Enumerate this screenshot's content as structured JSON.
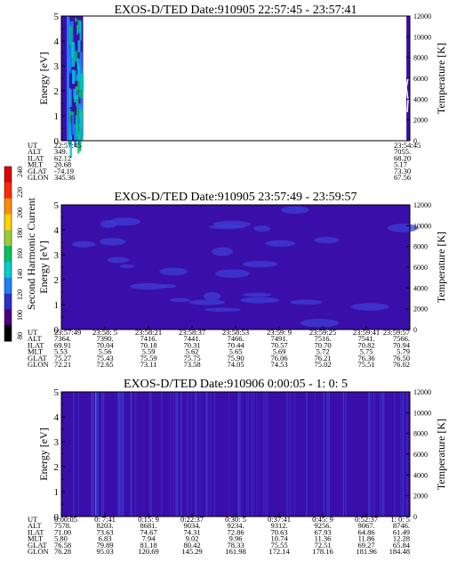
{
  "colors": {
    "background": "#3a0ea8",
    "noise": "#3d3dd6",
    "empty": "#ffffff",
    "frame": "#000000"
  },
  "colorbar": {
    "label": "Second Harmonic Current",
    "ticks": [
      "80",
      "100",
      "120",
      "140",
      "160",
      "180",
      "200",
      "220",
      "240"
    ],
    "colors": [
      "#000000",
      "#4b0082",
      "#2e2ecc",
      "#1f7fff",
      "#00d0d0",
      "#00c060",
      "#9acd32",
      "#ffd400",
      "#ff8c00",
      "#ff2a00",
      "#e00000"
    ]
  },
  "row_labels": [
    "UT",
    "ALT",
    "ILAT",
    "MLT",
    "GLAT",
    "GLON"
  ],
  "chart_data": [
    {
      "type": "heatmap",
      "title": "EXOS-D/TED   Date:910905  22:57:45 - 23:57:41",
      "ylabel": "Energy [eV]",
      "y2label": "Temperature [K]",
      "ylim": [
        0,
        5
      ],
      "y_ticks": [
        "0",
        "1",
        "2",
        "3",
        "4",
        "5"
      ],
      "y2lim": [
        0,
        12000
      ],
      "y2_ticks": [
        "0",
        "2000",
        "4000",
        "6000",
        "8000",
        "10000",
        "12000"
      ],
      "data_spans": [
        [
          0,
          0.0625
        ],
        [
          0.99,
          1.0
        ]
      ],
      "columns": [
        {
          "ut": "22:57:45",
          "alt": "349.",
          "ilat": "62.12",
          "mlt": "20.68",
          "glat": "-74.19",
          "glon": "345.36"
        },
        {
          "ut": "23:54:45",
          "alt": "7055.",
          "ilat": "68.20",
          "mlt": "5.17",
          "glat": "73.30",
          "glon": "67.56"
        }
      ]
    },
    {
      "type": "heatmap",
      "title": "EXOS-D/TED   Date:910905  23:57:49 - 23:59:57",
      "ylabel": "Energy [eV]",
      "y2label": "Temperature [K]",
      "ylim": [
        0,
        5
      ],
      "y_ticks": [
        "0",
        "1",
        "2",
        "3",
        "4",
        "5"
      ],
      "y2lim": [
        0,
        12000
      ],
      "y2_ticks": [
        "0",
        "2000",
        "4000",
        "6000",
        "8000",
        "10000",
        "12000"
      ],
      "columns": [
        {
          "ut": "23:57:49",
          "alt": "7364.",
          "ilat": "69.91",
          "mlt": "5.53",
          "glat": "75.27",
          "glon": "72.21"
        },
        {
          "ut": "23:58: 5",
          "alt": "7390.",
          "ilat": "70.04",
          "mlt": "5.56",
          "glat": "75.43",
          "glon": "72.65"
        },
        {
          "ut": "23:58:21",
          "alt": "7416.",
          "ilat": "70.18",
          "mlt": "5.59",
          "glat": "75.59",
          "glon": "73.11"
        },
        {
          "ut": "23:58:37",
          "alt": "7441.",
          "ilat": "70.31",
          "mlt": "5.62",
          "glat": "75.75",
          "glon": "73.58"
        },
        {
          "ut": "23:58:53",
          "alt": "7466.",
          "ilat": "70.44",
          "mlt": "5.65",
          "glat": "75.90",
          "glon": "74.05"
        },
        {
          "ut": "23:59: 9",
          "alt": "7491.",
          "ilat": "70.57",
          "mlt": "5.69",
          "glat": "76.06",
          "glon": "74.53"
        },
        {
          "ut": "23:59:25",
          "alt": "7516.",
          "ilat": "70.70",
          "mlt": "5.72",
          "glat": "76.21",
          "glon": "75.02"
        },
        {
          "ut": "23:59:41",
          "alt": "7541.",
          "ilat": "70.82",
          "mlt": "5.75",
          "glat": "76.36",
          "glon": "75.51"
        },
        {
          "ut": "23:59:57",
          "alt": "7566.",
          "ilat": "70.94",
          "mlt": "5.79",
          "glat": "76.50",
          "glon": "76.02"
        }
      ]
    },
    {
      "type": "heatmap",
      "title": "EXOS-D/TED   Date:910906  0:00:05 - 1: 0: 5",
      "ylabel": "Energy [eV]",
      "y2label": "Temperature [K]",
      "ylim": [
        0,
        5
      ],
      "y_ticks": [
        "0",
        "1",
        "2",
        "3",
        "4",
        "5"
      ],
      "y2lim": [
        0,
        12000
      ],
      "y2_ticks": [
        "0",
        "2000",
        "4000",
        "6000",
        "8000",
        "10000",
        "12000"
      ],
      "columns": [
        {
          "ut": "0:00:05",
          "alt": "7578.",
          "ilat": "71.00",
          "mlt": "5.80",
          "glat": "76.58",
          "glon": "76.28"
        },
        {
          "ut": "0: 7:41",
          "alt": "8203.",
          "ilat": "73.63",
          "mlt": "6.83",
          "glat": "79.89",
          "glon": "95.03"
        },
        {
          "ut": "0:15: 9",
          "alt": "8681.",
          "ilat": "74.67",
          "mlt": "7.94",
          "glat": "81.18",
          "glon": "120.69"
        },
        {
          "ut": "0:22:37",
          "alt": "9034.",
          "ilat": "74.31",
          "mlt": "9.02",
          "glat": "80.42",
          "glon": "145.29"
        },
        {
          "ut": "0:30: 5",
          "alt": "9234.",
          "ilat": "72.86",
          "mlt": "9.96",
          "glat": "78.33",
          "glon": "161.98"
        },
        {
          "ut": "0:37:41",
          "alt": "9312.",
          "ilat": "70.63",
          "mlt": "10.74",
          "glat": "75.55",
          "glon": "172.14"
        },
        {
          "ut": "0:45: 9",
          "alt": "9256.",
          "ilat": "67.93",
          "mlt": "11.36",
          "glat": "72.51",
          "glon": "178.16"
        },
        {
          "ut": "0:52:37",
          "alt": "9067.",
          "ilat": "64.86",
          "mlt": "11.86",
          "glat": "69.27",
          "glon": "181.96"
        },
        {
          "ut": "1: 0: 5",
          "alt": "8746.",
          "ilat": "61.49",
          "mlt": "12.28",
          "glat": "65.84",
          "glon": "184.48"
        }
      ]
    }
  ]
}
